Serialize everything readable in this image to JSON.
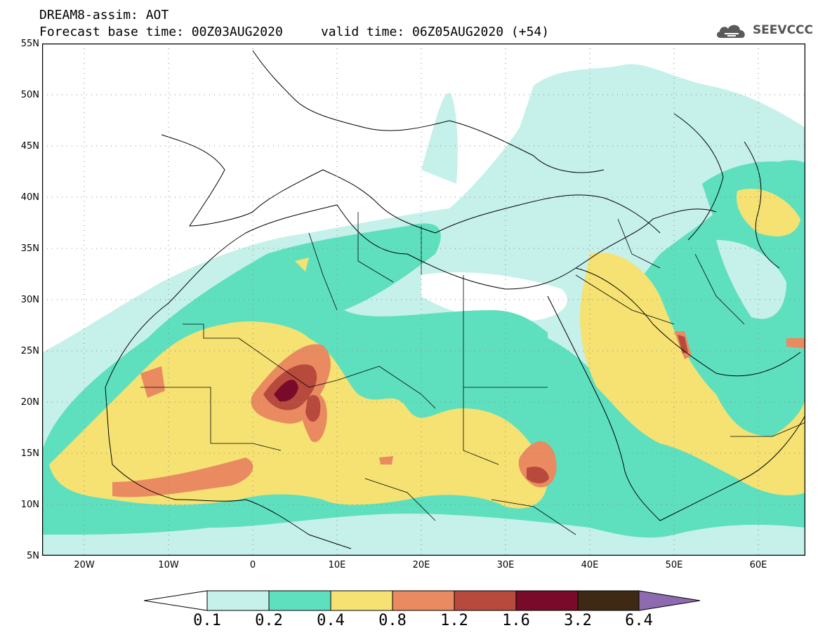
{
  "title": {
    "line1": "DREAM8-assim: AOT",
    "line2": "Forecast base time: 00Z03AUG2020     valid time: 06Z05AUG2020 (+54)"
  },
  "logo": {
    "text": "SEEVCCC",
    "icon": "cloud-icon"
  },
  "map": {
    "lat_labels": [
      "55N",
      "50N",
      "45N",
      "40N",
      "35N",
      "30N",
      "25N",
      "20N",
      "15N",
      "10N",
      "5N"
    ],
    "lon_labels": [
      "20W",
      "10W",
      "0",
      "10E",
      "20E",
      "30E",
      "40E",
      "50E",
      "60E"
    ],
    "lon_range": [
      -25,
      65
    ],
    "lat_range": [
      5,
      55
    ],
    "grid": "dotted"
  },
  "colorbar": {
    "labels": [
      "0.1",
      "0.2",
      "0.4",
      "0.8",
      "1.2",
      "1.6",
      "3.2",
      "6.4"
    ],
    "colors": [
      "#ffffff",
      "#c6f0ea",
      "#5ee0bf",
      "#f5e272",
      "#e98a60",
      "#b74a3c",
      "#7a0a2a",
      "#3e2a14",
      "#8e6bb0"
    ]
  }
}
